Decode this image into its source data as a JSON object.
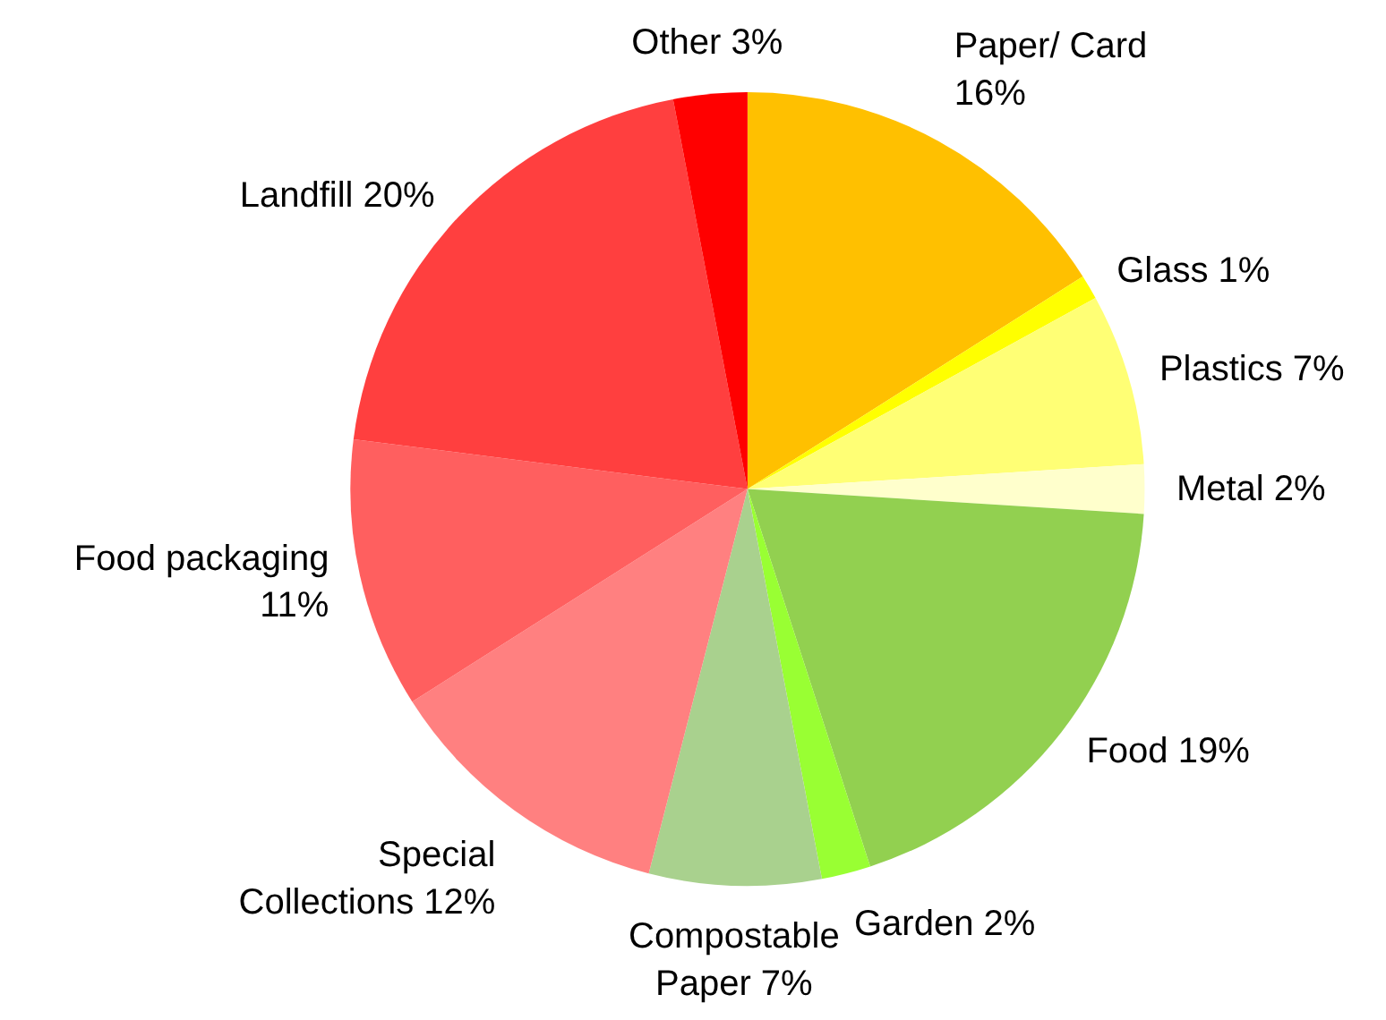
{
  "chart_data": {
    "type": "pie",
    "categories": [
      "Paper/ Card",
      "Glass",
      "Plastics",
      "Metal",
      "Food",
      "Garden",
      "Compostable\nPaper",
      "Special\nCollections",
      "Food packaging",
      "Landfill",
      "Other"
    ],
    "values": [
      16,
      1,
      7,
      2,
      19,
      2,
      7,
      12,
      11,
      20,
      3
    ],
    "value_labels": [
      "16%",
      "1%",
      "7%",
      "2%",
      "19%",
      "2%",
      "7%",
      "12%",
      "11%",
      "20%",
      "3%"
    ],
    "colors": [
      "#ffc000",
      "#ffff00",
      "#ffff75",
      "#ffffcc",
      "#92d050",
      "#99ff33",
      "#a9d18e",
      "#ff8080",
      "#ff5f5f",
      "#ff3f3f",
      "#ff0000"
    ],
    "legend": false
  }
}
